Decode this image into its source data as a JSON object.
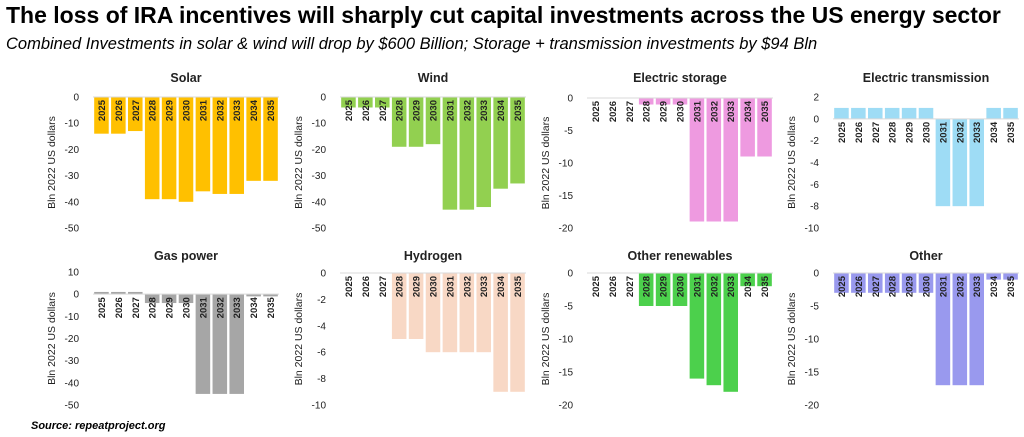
{
  "header": {
    "title": "The loss of IRA incentives will sharply cut capital investments across the US energy sector",
    "subtitle": "Combined Investments in solar & wind will drop by $600 Billion; Storage + transmission investments by $94 Bln"
  },
  "footer": {
    "source": "Source: repeatproject.org"
  },
  "chart_data": [
    {
      "type": "bar",
      "title": "Solar",
      "ylabel": "Bln 2022 US dollars",
      "color": "#FFC000",
      "categories": [
        "2025",
        "2026",
        "2027",
        "2028",
        "2029",
        "2030",
        "2031",
        "2032",
        "2033",
        "2034",
        "2035"
      ],
      "values": [
        -14,
        -14,
        -13,
        -39,
        -39,
        -40,
        -36,
        -37,
        -37,
        -32,
        -32
      ],
      "ylim": [
        -50,
        0
      ],
      "yticks": [
        0,
        -10,
        -20,
        -30,
        -40,
        -50
      ]
    },
    {
      "type": "bar",
      "title": "Wind",
      "ylabel": "Bln 2022 US dollars",
      "color": "#92D050",
      "categories": [
        "2025",
        "2026",
        "2027",
        "2028",
        "2029",
        "2030",
        "2031",
        "2032",
        "2033",
        "2034",
        "2035"
      ],
      "values": [
        -4,
        -4,
        -4,
        -19,
        -19,
        -18,
        -43,
        -43,
        -42,
        -35,
        -33
      ],
      "ylim": [
        -50,
        0
      ],
      "yticks": [
        0,
        -10,
        -20,
        -30,
        -40,
        -50
      ]
    },
    {
      "type": "bar",
      "title": "Electric storage",
      "ylabel": "Bln 2022 US dollars",
      "color": "#EE9AE0",
      "categories": [
        "2025",
        "2026",
        "2027",
        "2028",
        "2029",
        "2030",
        "2031",
        "2032",
        "2033",
        "2034",
        "2035"
      ],
      "values": [
        0,
        0,
        0,
        -1,
        -1,
        -1,
        -19,
        -19,
        -19,
        -9,
        -9
      ],
      "ylim": [
        -20,
        0
      ],
      "yticks": [
        0,
        -5,
        -10,
        -15,
        -20
      ]
    },
    {
      "type": "bar",
      "title": "Electric transmission",
      "ylabel": "Bln 2022 US dollars",
      "color": "#9EDCF5",
      "categories": [
        "2025",
        "2026",
        "2027",
        "2028",
        "2029",
        "2030",
        "2031",
        "2032",
        "2033",
        "2034",
        "2035"
      ],
      "values": [
        1,
        1,
        1,
        1,
        1,
        1,
        -8,
        -8,
        -8,
        1,
        1
      ],
      "ylim": [
        -10,
        2
      ],
      "yticks": [
        2,
        0,
        -2,
        -4,
        -6,
        -8,
        -10
      ]
    },
    {
      "type": "bar",
      "title": "Gas power",
      "ylabel": "Bln 2022 US dollars",
      "color": "#A6A6A6",
      "categories": [
        "2025",
        "2026",
        "2027",
        "2028",
        "2029",
        "2030",
        "2031",
        "2032",
        "2033",
        "2034",
        "2035"
      ],
      "values": [
        1,
        1,
        1,
        -4,
        -4,
        -4,
        -45,
        -45,
        -45,
        -1,
        -1
      ],
      "ylim": [
        -50,
        10
      ],
      "yticks": [
        10,
        0,
        -10,
        -20,
        -30,
        -40,
        -50
      ]
    },
    {
      "type": "bar",
      "title": "Hydrogen",
      "ylabel": "Bln 2022 US dollars",
      "color": "#F8D8C5",
      "categories": [
        "2025",
        "2026",
        "2027",
        "2028",
        "2029",
        "2030",
        "2031",
        "2032",
        "2033",
        "2034",
        "2035"
      ],
      "values": [
        0,
        0,
        0,
        -5,
        -5,
        -6,
        -6,
        -6,
        -6,
        -9,
        -9
      ],
      "ylim": [
        -10,
        0
      ],
      "yticks": [
        0,
        -2,
        -4,
        -6,
        -8,
        -10
      ]
    },
    {
      "type": "bar",
      "title": "Other renewables",
      "ylabel": "Bln 2022 US dollars",
      "color": "#4CD04C",
      "categories": [
        "2025",
        "2026",
        "2027",
        "2028",
        "2029",
        "2030",
        "2031",
        "2032",
        "2033",
        "2034",
        "2035"
      ],
      "values": [
        0,
        0,
        0,
        -5,
        -5,
        -5,
        -16,
        -17,
        -18,
        -2,
        -2
      ],
      "ylim": [
        -20,
        0
      ],
      "yticks": [
        0,
        -5,
        -10,
        -15,
        -20
      ]
    },
    {
      "type": "bar",
      "title": "Other",
      "ylabel": "Bln 2022 US dollars",
      "color": "#9999EE",
      "categories": [
        "2025",
        "2026",
        "2027",
        "2028",
        "2029",
        "2030",
        "2031",
        "2032",
        "2033",
        "2034",
        "2035"
      ],
      "values": [
        -3,
        -3,
        -3,
        -3,
        -3,
        -3,
        -17,
        -17,
        -17,
        -1,
        -1
      ],
      "ylim": [
        -20,
        0
      ],
      "yticks": [
        0,
        -5,
        -10,
        -15,
        -20
      ]
    }
  ]
}
